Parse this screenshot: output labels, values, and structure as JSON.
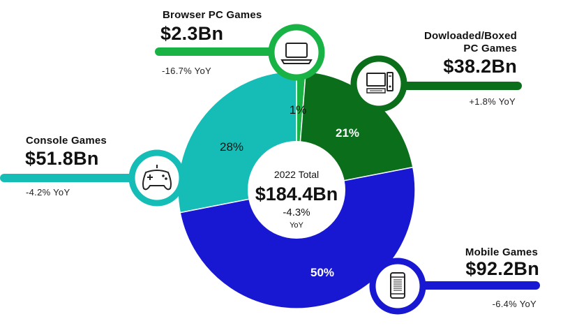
{
  "chart_data": {
    "type": "pie",
    "variant": "donut",
    "slices": [
      {
        "label": "Browser PC Games",
        "value": 2.3,
        "display_value": "$2.3Bn",
        "percent": 1,
        "percent_label": "1%",
        "yoy": "-16.7% YoY",
        "color": "#19b245",
        "icon": "laptop-icon"
      },
      {
        "label": "Dowloaded/Boxed PC Games",
        "value": 38.2,
        "display_value": "$38.2Bn",
        "percent": 21,
        "percent_label": "21%",
        "yoy": "+1.8% YoY",
        "color": "#0b6e1a",
        "icon": "desktop-computer-icon"
      },
      {
        "label": "Mobile Games",
        "value": 92.2,
        "display_value": "$92.2Bn",
        "percent": 50,
        "percent_label": "50%",
        "yoy": "-6.4% YoY",
        "color": "#1818d2",
        "icon": "smartphone-icon"
      },
      {
        "label": "Console Games",
        "value": 51.8,
        "display_value": "$51.8Bn",
        "percent": 28,
        "percent_label": "28%",
        "yoy": "-4.2% YoY",
        "color": "#16bdb6",
        "icon": "gamepad-icon"
      }
    ],
    "center": {
      "title": "2022 Total",
      "total": "$184.4Bn",
      "change": "-4.3%",
      "change_unit": "YoY"
    }
  },
  "labels": {
    "browser": {
      "title": "Browser PC Games",
      "value": "$2.3Bn",
      "yoy": "-16.7% YoY"
    },
    "downloaded": {
      "title_line1": "Dowloaded/Boxed",
      "title_line2": "PC Games",
      "value": "$38.2Bn",
      "yoy": "+1.8% YoY"
    },
    "console": {
      "title": "Console Games",
      "value": "$51.8Bn",
      "yoy": "-4.2% YoY"
    },
    "mobile": {
      "title": "Mobile Games",
      "value": "$92.2Bn",
      "yoy": "-6.4% YoY"
    }
  }
}
